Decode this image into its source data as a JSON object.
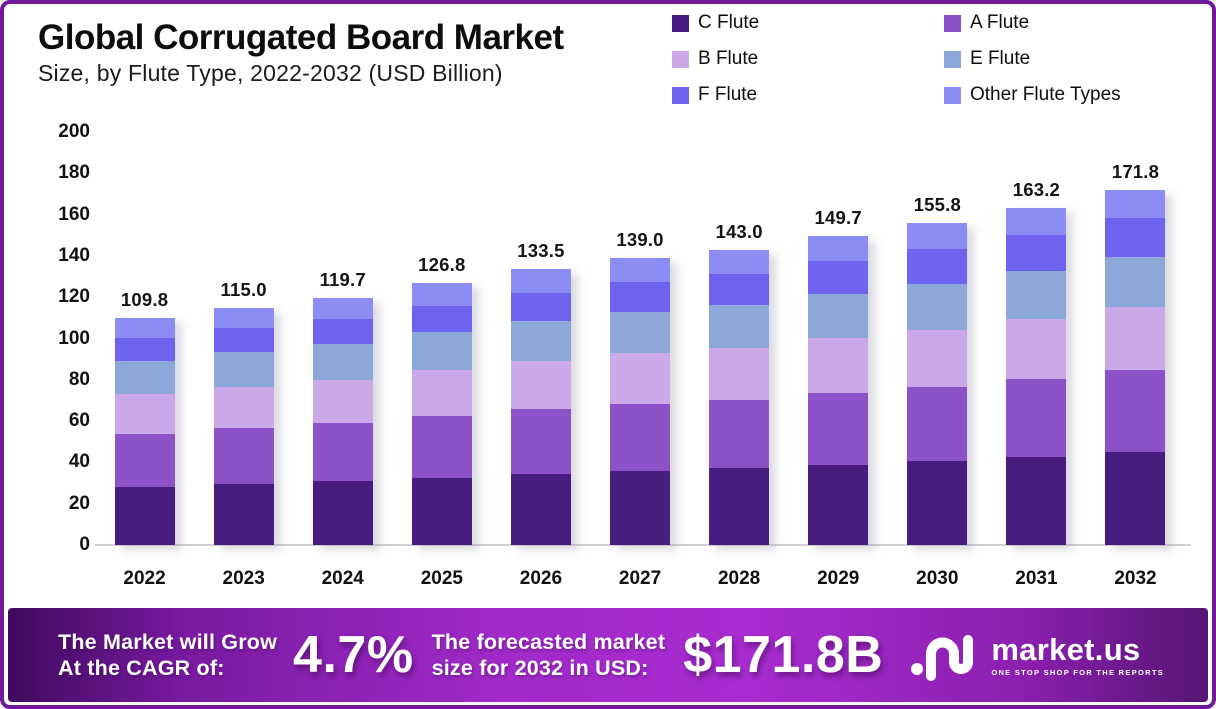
{
  "header": {
    "title": "Global Corrugated Board Market",
    "subtitle": "Size, by Flute Type, 2022-2032 (USD Billion)"
  },
  "chart_data": {
    "type": "bar",
    "stacked": true,
    "title": "Global Corrugated Board Market Size, by Flute Type, 2022-2032 (USD Billion)",
    "categories": [
      "2022",
      "2023",
      "2024",
      "2025",
      "2026",
      "2027",
      "2028",
      "2029",
      "2030",
      "2031",
      "2032"
    ],
    "series": [
      {
        "name": "C Flute",
        "color": "#481d80",
        "values": [
          28.1,
          29.5,
          30.8,
          32.7,
          34.5,
          36.0,
          37.1,
          38.9,
          40.6,
          42.7,
          45.0
        ]
      },
      {
        "name": "A Flute",
        "color": "#8d52c7",
        "values": [
          25.9,
          27.1,
          28.1,
          29.7,
          31.2,
          32.5,
          33.3,
          34.8,
          36.1,
          37.8,
          39.7
        ]
      },
      {
        "name": "B Flute",
        "color": "#cba8e8",
        "values": [
          19.2,
          20.1,
          21.0,
          22.3,
          23.5,
          24.5,
          25.2,
          26.4,
          27.5,
          28.9,
          30.5
        ]
      },
      {
        "name": "E Flute",
        "color": "#8ca8d8",
        "values": [
          16.1,
          16.8,
          17.5,
          18.3,
          19.3,
          20.0,
          20.5,
          21.4,
          22.2,
          23.1,
          24.2
        ]
      },
      {
        "name": "F Flute",
        "color": "#6d63ee",
        "values": [
          10.9,
          11.5,
          12.1,
          13.0,
          13.8,
          14.5,
          15.1,
          16.0,
          16.8,
          17.8,
          18.9
        ]
      },
      {
        "name": "Other Flute Types",
        "color": "#8c8df4",
        "values": [
          9.6,
          10.0,
          10.2,
          10.8,
          11.2,
          11.5,
          11.8,
          12.2,
          12.6,
          12.9,
          13.5
        ]
      }
    ],
    "totals": [
      109.8,
      115.0,
      119.7,
      126.8,
      133.5,
      139.0,
      143.0,
      149.7,
      155.8,
      163.2,
      171.8
    ],
    "ylim": [
      0,
      200
    ],
    "yticks": [
      0,
      20,
      40,
      60,
      80,
      100,
      120,
      140,
      160,
      180,
      200
    ],
    "grid": false,
    "legend_position": "top-right"
  },
  "banner": {
    "cagr_line1": "The Market will Grow",
    "cagr_line2": "At the CAGR of:",
    "cagr_value": "4.7%",
    "forecast_line1": "The forecasted market",
    "forecast_line2": "size for 2032 in USD:",
    "forecast_value": "$171.8B",
    "logo_text": "market.us",
    "logo_tagline": "ONE STOP SHOP FOR THE REPORTS",
    "gradient": [
      "#3f0a5e",
      "#7a1aa2",
      "#a22ac9",
      "#a82cd0",
      "#8a1fae",
      "#551573"
    ]
  },
  "colors": {
    "border": "#701a97",
    "axis_line": "#d2d2d2",
    "text": "#0d0d0d"
  }
}
